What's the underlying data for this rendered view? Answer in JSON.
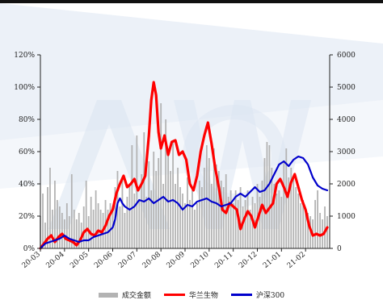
{
  "chart_data": {
    "type": "combo",
    "x_tick_labels": [
      "20-03",
      "20-04",
      "20-05",
      "20-06",
      "20-07",
      "20-08",
      "20-09",
      "20-10",
      "20-11",
      "20-12",
      "21-01",
      "21-02"
    ],
    "y_left": {
      "ticks": [
        "0%",
        "20%",
        "40%",
        "60%",
        "80%",
        "100%",
        "120%"
      ],
      "min": 0,
      "max": 120
    },
    "y_right": {
      "ticks": [
        "0",
        "1000",
        "2000",
        "3000",
        "4000",
        "5000",
        "6000"
      ],
      "min": 0,
      "max": 6000
    },
    "grid": false,
    "legend_position": "bottom",
    "series": [
      {
        "name": "成交金额",
        "type": "bar",
        "axis": "right",
        "color": "#b3b3b3",
        "x": [
          0,
          0.1,
          0.2,
          0.3,
          0.4,
          0.5,
          0.6,
          0.7,
          0.8,
          0.9,
          1,
          1.1,
          1.2,
          1.3,
          1.4,
          1.5,
          1.6,
          1.7,
          1.8,
          1.9,
          2,
          2.1,
          2.2,
          2.3,
          2.4,
          2.5,
          2.6,
          2.7,
          2.8,
          2.9,
          3,
          3.1,
          3.2,
          3.3,
          3.4,
          3.5,
          3.6,
          3.7,
          3.8,
          3.9,
          4,
          4.1,
          4.2,
          4.3,
          4.4,
          4.5,
          4.6,
          4.7,
          4.8,
          4.9,
          5,
          5.1,
          5.2,
          5.3,
          5.4,
          5.5,
          5.6,
          5.7,
          5.8,
          5.9,
          6,
          6.1,
          6.2,
          6.3,
          6.4,
          6.5,
          6.6,
          6.7,
          6.8,
          6.9,
          7,
          7.1,
          7.2,
          7.3,
          7.4,
          7.5,
          7.6,
          7.7,
          7.8,
          7.9,
          8,
          8.1,
          8.2,
          8.3,
          8.4,
          8.5,
          8.6,
          8.7,
          8.8,
          8.9,
          9,
          9.1,
          9.2,
          9.3,
          9.4,
          9.5,
          9.6,
          9.7,
          9.8,
          9.9,
          10,
          10.1,
          10.2,
          10.3,
          10.4,
          10.5,
          10.6,
          10.7,
          10.8,
          10.9,
          11,
          11.1,
          11.2,
          11.3,
          11.4,
          11.5,
          11.6,
          11.7,
          11.8,
          11.9
        ],
        "values": [
          1000,
          1700,
          800,
          1900,
          2500,
          1200,
          2100,
          1500,
          1300,
          1100,
          900,
          1400,
          1000,
          2300,
          1200,
          900,
          1100,
          800,
          1300,
          2100,
          1000,
          1600,
          1200,
          1800,
          1400,
          1200,
          1100,
          1500,
          1200,
          1400,
          1300,
          1900,
          2400,
          1300,
          2200,
          1100,
          1600,
          2000,
          3200,
          1700,
          3500,
          1500,
          2300,
          3600,
          1600,
          2700,
          1800,
          3000,
          2400,
          2800,
          4500,
          2000,
          4000,
          3100,
          2400,
          3300,
          2000,
          2500,
          1900,
          1700,
          1400,
          2200,
          1500,
          1800,
          1200,
          1400,
          2100,
          1900,
          2500,
          3200,
          2800,
          2000,
          3100,
          2600,
          2400,
          2100,
          1900,
          2300,
          1600,
          1800,
          1400,
          1800,
          1500,
          1900,
          1300,
          1500,
          1800,
          1200,
          1600,
          1400,
          2000,
          1600,
          2100,
          2800,
          3300,
          3200,
          2500,
          2000,
          1700,
          1800,
          1600,
          2700,
          3100,
          2200,
          2500,
          2200,
          1900,
          1700,
          1400,
          1500,
          1200,
          1100,
          1000,
          900,
          1500,
          1800,
          1100,
          900,
          1300,
          1000
        ]
      },
      {
        "name": "华兰生物",
        "type": "line",
        "axis": "left",
        "color": "#ff0000",
        "x": [
          0,
          0.15,
          0.3,
          0.45,
          0.6,
          0.75,
          0.9,
          1.05,
          1.2,
          1.35,
          1.5,
          1.65,
          1.8,
          1.95,
          2.1,
          2.25,
          2.4,
          2.55,
          2.7,
          2.85,
          3,
          3.15,
          3.3,
          3.45,
          3.6,
          3.75,
          3.9,
          4.05,
          4.2,
          4.35,
          4.5,
          4.6,
          4.7,
          4.8,
          4.9,
          5,
          5.15,
          5.3,
          5.45,
          5.6,
          5.75,
          5.9,
          6.05,
          6.2,
          6.35,
          6.5,
          6.65,
          6.8,
          6.95,
          7.1,
          7.25,
          7.4,
          7.55,
          7.7,
          7.85,
          8,
          8.15,
          8.3,
          8.45,
          8.6,
          8.75,
          8.9,
          9.05,
          9.2,
          9.35,
          9.5,
          9.65,
          9.8,
          9.95,
          10.1,
          10.25,
          10.4,
          10.55,
          10.7,
          10.85,
          11,
          11.15,
          11.3,
          11.45,
          11.6,
          11.75,
          11.9
        ],
        "values": [
          0,
          3,
          6,
          8,
          4,
          7,
          9,
          6,
          5,
          4,
          2,
          5,
          10,
          12,
          9,
          8,
          11,
          10,
          14,
          20,
          24,
          34,
          40,
          45,
          38,
          40,
          43,
          36,
          40,
          45,
          70,
          92,
          103,
          95,
          72,
          62,
          70,
          58,
          66,
          67,
          58,
          60,
          55,
          40,
          36,
          45,
          60,
          70,
          78,
          65,
          50,
          38,
          24,
          22,
          28,
          26,
          24,
          12,
          18,
          23,
          20,
          13,
          20,
          27,
          22,
          25,
          28,
          40,
          43,
          38,
          32,
          41,
          46,
          38,
          30,
          24,
          14,
          8,
          9,
          8,
          9,
          13
        ]
      },
      {
        "name": "沪深300",
        "type": "line",
        "axis": "left",
        "color": "#0000cc",
        "x": [
          0,
          0.2,
          0.4,
          0.6,
          0.8,
          1,
          1.2,
          1.4,
          1.6,
          1.8,
          2,
          2.2,
          2.4,
          2.6,
          2.8,
          3,
          3.1,
          3.2,
          3.3,
          3.4,
          3.5,
          3.7,
          3.9,
          4.1,
          4.3,
          4.5,
          4.7,
          4.9,
          5.1,
          5.3,
          5.5,
          5.7,
          5.9,
          6.1,
          6.3,
          6.5,
          6.7,
          6.9,
          7.1,
          7.3,
          7.5,
          7.7,
          7.9,
          8.1,
          8.3,
          8.5,
          8.7,
          8.9,
          9.1,
          9.3,
          9.5,
          9.7,
          9.9,
          10.1,
          10.3,
          10.5,
          10.7,
          10.9,
          11.1,
          11.3,
          11.5,
          11.7,
          11.9
        ],
        "values": [
          0,
          3,
          4,
          5,
          6,
          8,
          6,
          5,
          4,
          5,
          5,
          7,
          8,
          9,
          10,
          13,
          18,
          28,
          31,
          28,
          26,
          24,
          26,
          30,
          29,
          31,
          28,
          30,
          32,
          29,
          30,
          28,
          24,
          27,
          26,
          29,
          30,
          31,
          29,
          28,
          26,
          27,
          28,
          32,
          34,
          32,
          35,
          38,
          35,
          36,
          40,
          46,
          52,
          54,
          51,
          55,
          57,
          56,
          52,
          44,
          39,
          37,
          36
        ]
      }
    ]
  },
  "legend": {
    "items": [
      {
        "label": "成交金额",
        "color": "#b3b3b3"
      },
      {
        "label": "华兰生物",
        "color": "#ff0000"
      },
      {
        "label": "沪深300",
        "color": "#0000cc"
      }
    ]
  }
}
